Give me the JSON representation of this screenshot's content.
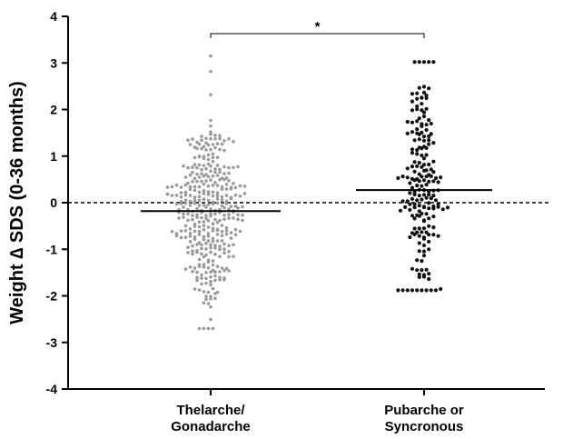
{
  "chart_data": {
    "type": "scatter",
    "subtype": "beeswarm dot plot with mean lines",
    "ylabel": "Weight ∆ SDS (0-36 months)",
    "ylim": [
      -4,
      4
    ],
    "yticks": [
      4,
      3,
      2,
      1,
      0,
      -1,
      -2,
      -3,
      -4
    ],
    "reference_line": {
      "y": 0,
      "style": "dashed"
    },
    "significance": {
      "label": "*",
      "between": [
        0,
        1
      ]
    },
    "series": [
      {
        "category_lines": [
          "Thelarche/",
          "Gonadarche"
        ],
        "color": "#9a9a9a",
        "mean": -0.18,
        "range": [
          -2.7,
          3.15
        ],
        "n_points_approx": 360
      },
      {
        "category_lines": [
          "Pubarche or",
          "Syncronous"
        ],
        "color": "#111111",
        "mean": 0.27,
        "range": [
          -1.88,
          3.02
        ],
        "n_points_approx": 190
      }
    ]
  }
}
